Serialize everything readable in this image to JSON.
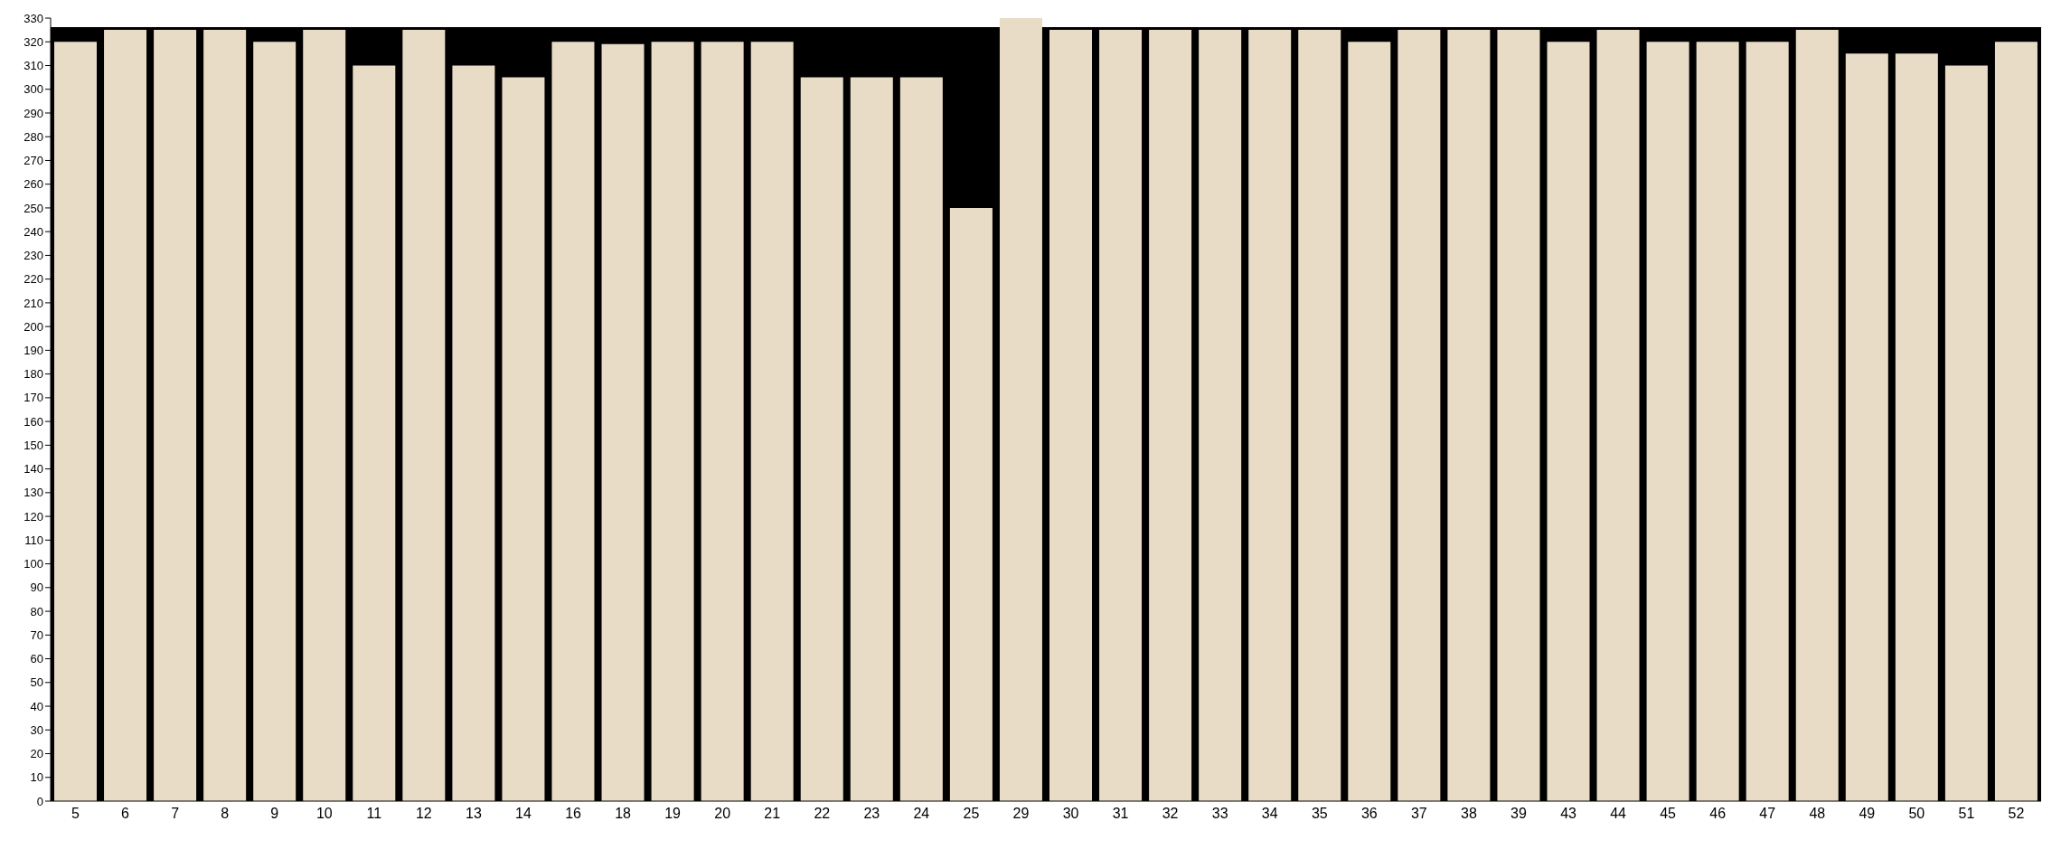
{
  "chart_data": {
    "type": "bar",
    "categories": [
      "5",
      "6",
      "7",
      "8",
      "9",
      "10",
      "11",
      "12",
      "13",
      "14",
      "16",
      "18",
      "19",
      "20",
      "21",
      "22",
      "23",
      "24",
      "25",
      "29",
      "30",
      "31",
      "32",
      "33",
      "34",
      "35",
      "36",
      "37",
      "38",
      "39",
      "43",
      "44",
      "45",
      "46",
      "47",
      "48",
      "49",
      "50",
      "51",
      "52"
    ],
    "values": [
      320,
      325,
      325,
      325,
      320,
      325,
      310,
      325,
      310,
      305,
      320,
      319,
      320,
      320,
      320,
      305,
      305,
      305,
      250,
      330,
      325,
      325,
      325,
      325,
      325,
      325,
      320,
      325,
      325,
      325,
      320,
      325,
      320,
      320,
      320,
      325,
      315,
      315,
      310,
      320
    ],
    "color": "#e8dcc6",
    "ylim": [
      0,
      330
    ],
    "yticks": [
      0,
      10,
      20,
      30,
      40,
      50,
      60,
      70,
      80,
      90,
      100,
      110,
      120,
      130,
      140,
      150,
      160,
      170,
      180,
      190,
      200,
      210,
      220,
      230,
      240,
      250,
      260,
      270,
      280,
      290,
      300,
      310,
      320,
      330
    ],
    "grid": false,
    "legend": false
  }
}
